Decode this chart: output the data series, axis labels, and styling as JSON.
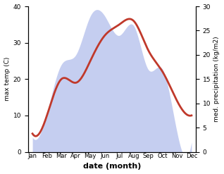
{
  "months": [
    "Jan",
    "Feb",
    "Mar",
    "Apr",
    "May",
    "Jun",
    "Jul",
    "Aug",
    "Sep",
    "Oct",
    "Nov",
    "Dec"
  ],
  "temperature": [
    5,
    10,
    20,
    19,
    25,
    32,
    35,
    36,
    28,
    22,
    14,
    10
  ],
  "precipitation": [
    3,
    8,
    18,
    20,
    28,
    28,
    24,
    26,
    17,
    17,
    4,
    2
  ],
  "temp_color": "#c0392b",
  "precip_fill_color": "#c5cef0",
  "ylabel_left": "max temp (C)",
  "ylabel_right": "med. precipitation (kg/m2)",
  "xlabel": "date (month)",
  "ylim_left": [
    0,
    40
  ],
  "ylim_right": [
    0,
    30
  ],
  "yticks_left": [
    0,
    10,
    20,
    30,
    40
  ],
  "yticks_right": [
    0,
    5,
    10,
    15,
    20,
    25,
    30
  ],
  "temp_linewidth": 2.0
}
